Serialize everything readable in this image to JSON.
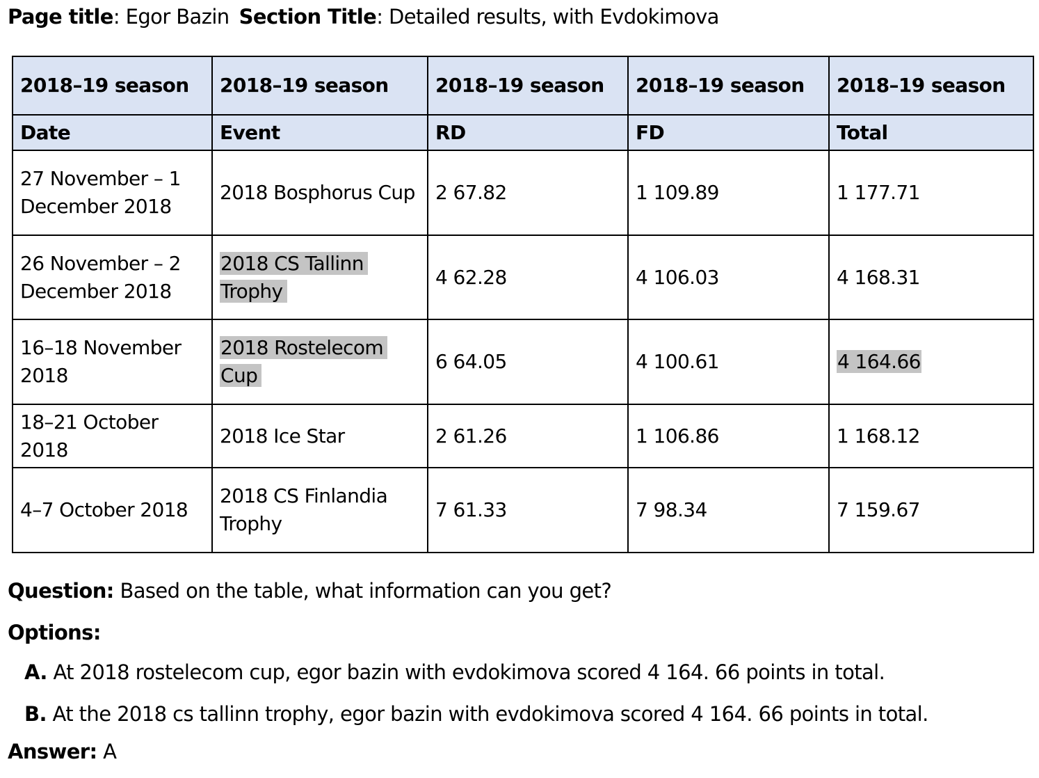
{
  "header": {
    "page_title_label": "Page title",
    "page_title": "Egor Bazin",
    "section_title_label": "Section Title",
    "section_title": "Detailed results, with Evdokimova"
  },
  "table": {
    "group_headers": [
      "2018–19 season",
      "2018–19 season",
      "2018–19 season",
      "2018–19 season",
      "2018–19 season"
    ],
    "columns": [
      "Date",
      "Event",
      "RD",
      "FD",
      "Total"
    ],
    "rows": [
      [
        "27 November – 1 December 2018",
        "2018 Bosphorus Cup",
        "2 67.82",
        "1 109.89",
        "1 177.71"
      ],
      [
        "26 November – 2 December 2018",
        "2018 CS Tallinn Trophy",
        "4 62.28",
        "4 106.03",
        "4 168.31"
      ],
      [
        "16–18 November 2018",
        "2018 Rostelecom Cup",
        "6 64.05",
        "4 100.61",
        "4 164.66"
      ],
      [
        "18–21 October 2018",
        "2018 Ice Star",
        "2 61.26",
        "1 106.86",
        "1 168.12"
      ],
      [
        "4–7 October 2018",
        "2018 CS Finlandia Trophy",
        "7 61.33",
        "7 98.34",
        "7 159.67"
      ]
    ],
    "highlight_color": "#c4c4c4",
    "header_color": "#dae3f3"
  },
  "question": {
    "label": "Question:",
    "text": "Based on the table, what information can you get?"
  },
  "options": {
    "label": "Options:",
    "items": [
      {
        "letter": "A.",
        "text": "At 2018 rostelecom cup, egor bazin with evdokimova scored 4 164. 66 points in total."
      },
      {
        "letter": "B.",
        "text": "At the 2018 cs tallinn trophy, egor bazin with evdokimova scored 4 164. 66 points in total."
      }
    ]
  },
  "answer": {
    "label": "Answer:",
    "value": "A"
  }
}
